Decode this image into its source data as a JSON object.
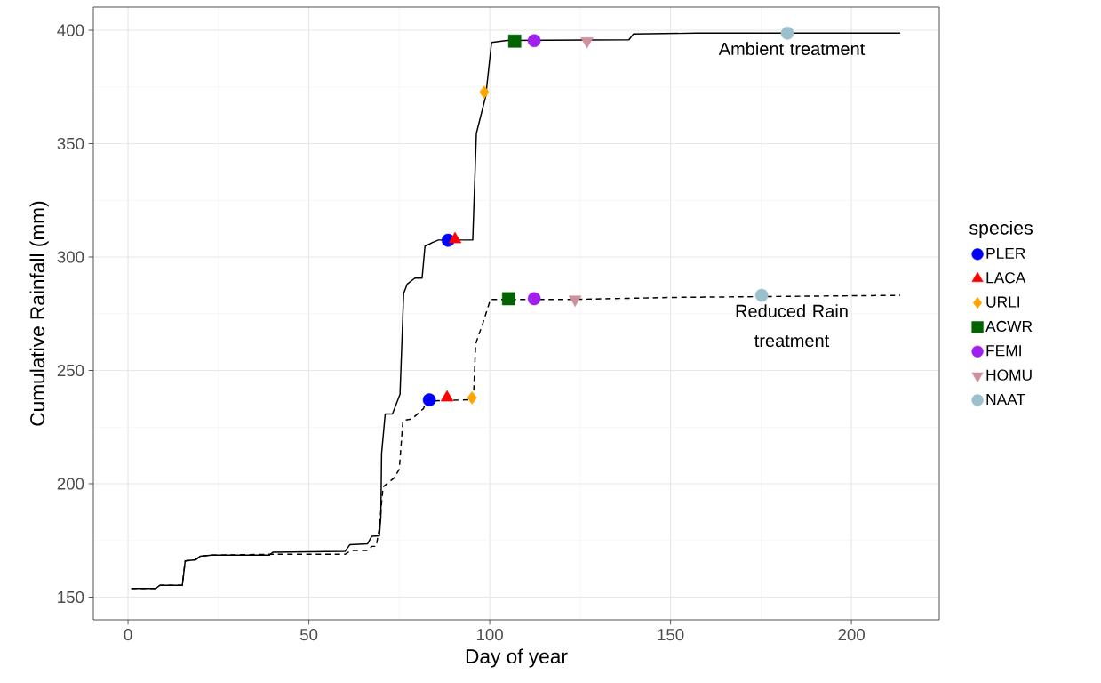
{
  "chart_data": {
    "type": "line",
    "xlabel": "Day of year",
    "ylabel": "Cumulative Rainfall (mm)",
    "legend_title": "species",
    "xlim": [
      -9.6,
      224.3
    ],
    "ylim": [
      140,
      410.2
    ],
    "xticks": [
      0,
      50,
      100,
      150,
      200
    ],
    "yticks": [
      150,
      200,
      250,
      300,
      350,
      400
    ],
    "grid": true,
    "legend": "right",
    "series": [
      {
        "color": "#000000",
        "line_style": "solid",
        "marker": "none",
        "x": [
          0.9,
          7.6,
          8.8,
          15,
          15.8,
          18.7,
          19.9,
          23.2,
          39.1,
          40,
          60,
          61.3,
          66.2,
          67.4,
          69.5,
          69.9,
          70.1,
          71.1,
          73.1,
          75.2,
          76.2,
          77.2,
          79.3,
          81.3,
          82.1,
          84.2,
          85.8,
          95.3,
          96.3,
          98.9,
          100.5,
          104.8,
          138.5,
          139.7,
          157.1,
          213.5
        ],
        "values": [
          153.8,
          153.8,
          155.2,
          155.2,
          166,
          166.5,
          168,
          168.5,
          168.5,
          169.8,
          170.2,
          173.1,
          173.5,
          176.9,
          177.1,
          185.5,
          213.3,
          230.8,
          230.8,
          239.5,
          283.9,
          288.1,
          290.7,
          290.7,
          304.8,
          306.4,
          307.5,
          307.5,
          354.5,
          371,
          394.6,
          395.5,
          395.8,
          398.3,
          398.7,
          398.7
        ]
      },
      {
        "color": "#000000",
        "line_style": "dashed",
        "marker": "none",
        "x": [
          0.9,
          7.6,
          8.8,
          15,
          15.8,
          18.7,
          19.9,
          23.2,
          39.1,
          60,
          61.7,
          66.2,
          67.4,
          68.6,
          69.5,
          70.5,
          73.5,
          75,
          76,
          78.5,
          81.7,
          82.5,
          95.3,
          95.6,
          96.1,
          98.1,
          100.2,
          122.6,
          151.7,
          213.5
        ],
        "values": [
          153.8,
          153.8,
          155.2,
          155.2,
          166,
          166.5,
          168,
          168.5,
          168.9,
          168.9,
          170.6,
          170.6,
          172.4,
          172.4,
          180.6,
          198.6,
          202.5,
          206.4,
          227.9,
          228.6,
          233.2,
          236.5,
          237.1,
          241.7,
          261.7,
          270.8,
          281.3,
          281.3,
          282.2,
          283.1
        ]
      },
      {
        "type": "scatter",
        "name": "PLER",
        "color": "#0000ff",
        "marker": "circle",
        "x": [
          88.5,
          83.3
        ],
        "values": [
          307.4,
          237
        ]
      },
      {
        "type": "scatter",
        "name": "LACA",
        "color": "#ff0000",
        "marker": "triangle",
        "x": [
          90.4,
          88.2
        ],
        "values": [
          307.8,
          238
        ]
      },
      {
        "type": "scatter",
        "name": "URLI",
        "color": "#ffa500",
        "marker": "diamond",
        "x": [
          98.5,
          95.1
        ],
        "values": [
          372.7,
          237.9
        ]
      },
      {
        "type": "scatter",
        "name": "ACWR",
        "color": "#006400",
        "marker": "square",
        "x": [
          106.9,
          105.2
        ],
        "values": [
          395.2,
          281.6
        ]
      },
      {
        "type": "scatter",
        "name": "FEMI",
        "color": "#a020f0",
        "marker": "circle",
        "x": [
          112.3,
          112.3
        ],
        "values": [
          395.4,
          281.6
        ]
      },
      {
        "type": "scatter",
        "name": "HOMU",
        "color": "#cd919e",
        "marker": "triangle down",
        "x": [
          126.9,
          123.6
        ],
        "values": [
          395.2,
          281.3
        ]
      },
      {
        "type": "scatter",
        "name": "NAAT",
        "color": "#9ac0cd",
        "marker": "circle",
        "x": [
          182.3,
          175.2
        ],
        "values": [
          398.7,
          283.1
        ]
      }
    ],
    "annotations": [
      "Ambient treatment",
      "Reduced Rain treatment"
    ]
  }
}
